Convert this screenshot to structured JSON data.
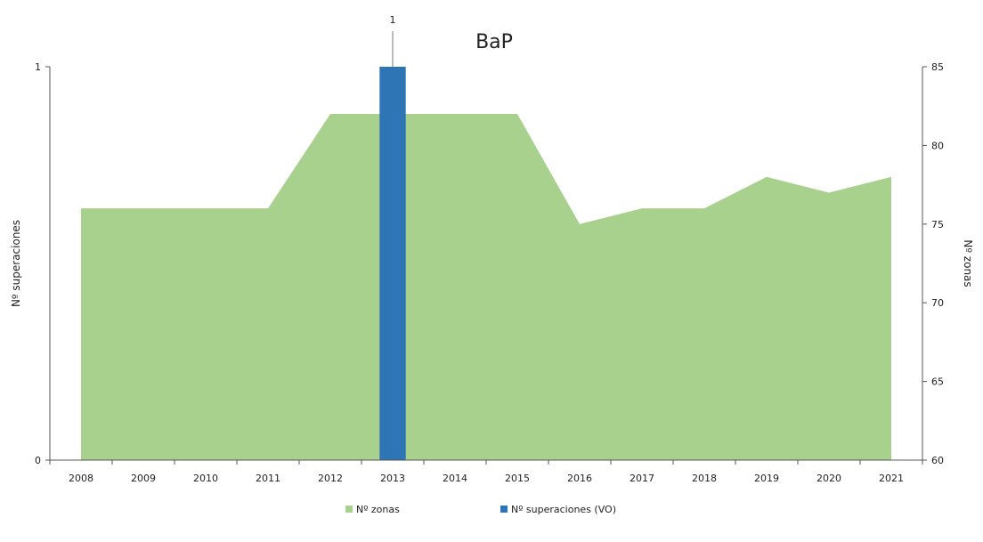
{
  "chart_data": {
    "type": "bar+area",
    "title": "BaP",
    "categories": [
      "2008",
      "2009",
      "2010",
      "2011",
      "2012",
      "2013",
      "2014",
      "2015",
      "2016",
      "2017",
      "2018",
      "2019",
      "2020",
      "2021"
    ],
    "series": [
      {
        "name": "Nº zonas",
        "type": "area",
        "axis": "right",
        "color": "#a9d18e",
        "values": [
          76,
          76,
          76,
          76,
          82,
          82,
          82,
          82,
          75,
          76,
          76,
          78,
          77,
          78
        ]
      },
      {
        "name": "Nº superaciones (VO)",
        "type": "bar",
        "axis": "left",
        "color": "#2e75b6",
        "values": [
          0,
          0,
          0,
          0,
          0,
          1,
          0,
          0,
          0,
          0,
          0,
          0,
          0,
          0
        ]
      }
    ],
    "data_labels": [
      {
        "category": "2013",
        "text": "1"
      }
    ],
    "y_left": {
      "label": "Nº superaciones",
      "range": [
        0,
        1
      ],
      "ticks": [
        "0",
        "1"
      ]
    },
    "y_right": {
      "label": "Nº zonas",
      "range": [
        60,
        85
      ],
      "ticks": [
        "60",
        "65",
        "70",
        "75",
        "80",
        "85"
      ]
    },
    "grid": false,
    "legend_position": "bottom"
  }
}
